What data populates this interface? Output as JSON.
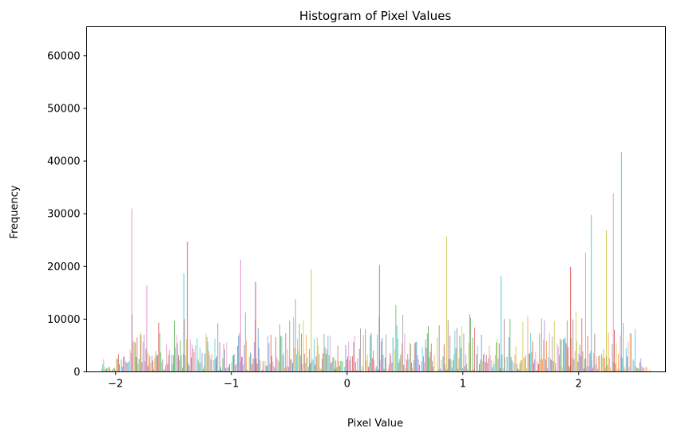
{
  "chart_data": {
    "type": "bar",
    "title": "Histogram of Pixel Values",
    "xlabel": "Pixel Value",
    "ylabel": "Frequency",
    "xlim": [
      -2.25,
      2.75
    ],
    "ylim": [
      0,
      65500
    ],
    "xticks": [
      -2,
      -1,
      0,
      1,
      2
    ],
    "xtick_labels": [
      "−2",
      "−1",
      "0",
      "1",
      "2"
    ],
    "yticks": [
      0,
      10000,
      20000,
      30000,
      40000,
      50000,
      60000
    ],
    "ytick_labels": [
      "0",
      "10000",
      "20000",
      "30000",
      "40000",
      "50000",
      "60000"
    ],
    "grid": false,
    "legend": "none",
    "bar_opacity": 0.7,
    "colors": [
      "#1f77b4",
      "#ff7f0e",
      "#2ca02c",
      "#d62728",
      "#9467bd",
      "#8c564b",
      "#e377c2",
      "#7f7f7f",
      "#bcbd22",
      "#17becf"
    ],
    "series_count": 10,
    "notable_peaks": [
      {
        "x": -1.86,
        "y": 31000,
        "color": "#e377c2"
      },
      {
        "x": -1.73,
        "y": 16400,
        "color": "#e377c2"
      },
      {
        "x": -1.41,
        "y": 18700,
        "color": "#17becf"
      },
      {
        "x": -1.38,
        "y": 24700,
        "color": "#d62728"
      },
      {
        "x": -0.92,
        "y": 21300,
        "color": "#e377c2"
      },
      {
        "x": -0.79,
        "y": 17100,
        "color": "#d62728"
      },
      {
        "x": -0.31,
        "y": 19500,
        "color": "#bcbd22"
      },
      {
        "x": 0.28,
        "y": 20300,
        "color": "#2ca02c"
      },
      {
        "x": 0.86,
        "y": 25700,
        "color": "#bcbd22"
      },
      {
        "x": 1.33,
        "y": 18200,
        "color": "#17becf"
      },
      {
        "x": 1.93,
        "y": 19900,
        "color": "#d62728"
      },
      {
        "x": 2.06,
        "y": 22600,
        "color": "#e377c2"
      },
      {
        "x": 2.11,
        "y": 29800,
        "color": "#17becf"
      },
      {
        "x": 2.24,
        "y": 26900,
        "color": "#bcbd22"
      },
      {
        "x": 2.3,
        "y": 33900,
        "color": "#e377c2"
      },
      {
        "x": 2.37,
        "y": 41700,
        "color": "#17becf"
      }
    ]
  }
}
